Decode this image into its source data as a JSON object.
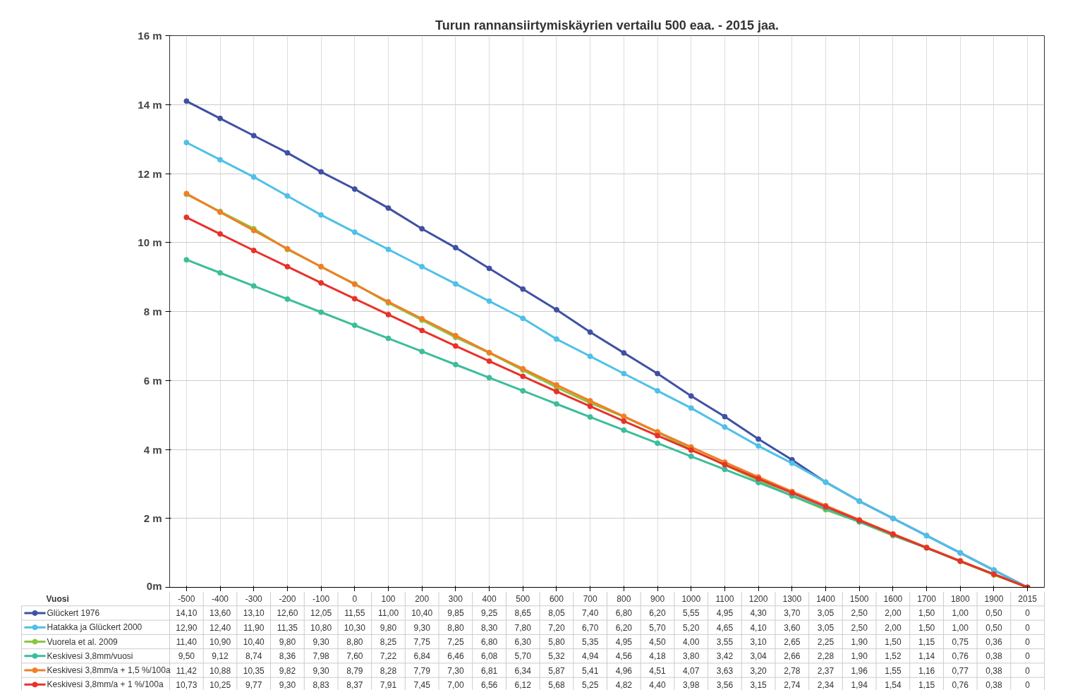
{
  "chart_data": {
    "type": "line",
    "title": "Turun rannansiirtymiskäyrien vertailu 500 eaa. - 2015 jaa.",
    "annotations": [
      "Vuosi"
    ],
    "categories": [
      "-500",
      "-400",
      "-300",
      "-200",
      "-100",
      "0",
      "100",
      "200",
      "300",
      "400",
      "500",
      "600",
      "700",
      "800",
      "900",
      "1000",
      "1100",
      "1200",
      "1300",
      "1400",
      "1500",
      "1600",
      "1700",
      "1800",
      "1900",
      "2015"
    ],
    "ylim": [
      0,
      16
    ],
    "yticks": [
      {
        "value": 0,
        "label": "0m"
      },
      {
        "value": 2,
        "label": "2 m"
      },
      {
        "value": 4,
        "label": "4 m"
      },
      {
        "value": 6,
        "label": "6 m"
      },
      {
        "value": 8,
        "label": "8 m"
      },
      {
        "value": 10,
        "label": "10 m"
      },
      {
        "value": 12,
        "label": "12 m"
      },
      {
        "value": 14,
        "label": "14 m"
      },
      {
        "value": 16,
        "label": "16 m"
      }
    ],
    "grid": true,
    "legend": "bottom",
    "marker": "circle",
    "line_style": "solid",
    "series": [
      {
        "name": "Glückert 1976",
        "color": "#3f51a3",
        "values": [
          14.1,
          13.6,
          13.1,
          12.6,
          12.05,
          11.55,
          11.0,
          10.4,
          9.85,
          9.25,
          8.65,
          8.05,
          7.4,
          6.8,
          6.2,
          5.55,
          4.95,
          4.3,
          3.7,
          3.05,
          2.5,
          2.0,
          1.5,
          1.0,
          0.5,
          0
        ],
        "value_labels": [
          "14,10",
          "13,60",
          "13,10",
          "12,60",
          "12,05",
          "11,55",
          "11,00",
          "10,40",
          "9,85",
          "9,25",
          "8,65",
          "8,05",
          "7,40",
          "6,80",
          "6,20",
          "5,55",
          "4,95",
          "4,30",
          "3,70",
          "3,05",
          "2,50",
          "2,00",
          "1,50",
          "1,00",
          "0,50",
          "0"
        ]
      },
      {
        "name": "Hatakka ja Glückert 2000",
        "color": "#4fc0e8",
        "values": [
          12.9,
          12.4,
          11.9,
          11.35,
          10.8,
          10.3,
          9.8,
          9.3,
          8.8,
          8.3,
          7.8,
          7.2,
          6.7,
          6.2,
          5.7,
          5.2,
          4.65,
          4.1,
          3.6,
          3.05,
          2.5,
          2.0,
          1.5,
          1.0,
          0.5,
          0
        ],
        "value_labels": [
          "12,90",
          "12,40",
          "11,90",
          "11,35",
          "10,80",
          "10,30",
          "9,80",
          "9,30",
          "8,80",
          "8,30",
          "7,80",
          "7,20",
          "6,70",
          "6,20",
          "5,70",
          "5,20",
          "4,65",
          "4,10",
          "3,60",
          "3,05",
          "2,50",
          "2,00",
          "1,50",
          "1,00",
          "0,50",
          "0"
        ]
      },
      {
        "name": "Vuorela et al. 2009",
        "color": "#8cc63f",
        "values": [
          11.4,
          10.9,
          10.4,
          9.8,
          9.3,
          8.8,
          8.25,
          7.75,
          7.25,
          6.8,
          6.3,
          5.8,
          5.35,
          4.95,
          4.5,
          4.0,
          3.55,
          3.1,
          2.65,
          2.25,
          1.9,
          1.5,
          1.15,
          0.75,
          0.36,
          0
        ],
        "value_labels": [
          "11,40",
          "10,90",
          "10,40",
          "9,80",
          "9,30",
          "8,80",
          "8,25",
          "7,75",
          "7,25",
          "6,80",
          "6,30",
          "5,80",
          "5,35",
          "4,95",
          "4,50",
          "4,00",
          "3,55",
          "3,10",
          "2,65",
          "2,25",
          "1,90",
          "1,50",
          "1,15",
          "0,75",
          "0,36",
          "0"
        ]
      },
      {
        "name": "Keskivesi 3,8mm/vuosi",
        "color": "#3dbd9a",
        "values": [
          9.5,
          9.12,
          8.74,
          8.36,
          7.98,
          7.6,
          7.22,
          6.84,
          6.46,
          6.08,
          5.7,
          5.32,
          4.94,
          4.56,
          4.18,
          3.8,
          3.42,
          3.04,
          2.66,
          2.28,
          1.9,
          1.52,
          1.14,
          0.76,
          0.38,
          0
        ],
        "value_labels": [
          "9,50",
          "9,12",
          "8,74",
          "8,36",
          "7,98",
          "7,60",
          "7,22",
          "6,84",
          "6,46",
          "6,08",
          "5,70",
          "5,32",
          "4,94",
          "4,56",
          "4,18",
          "3,80",
          "3,42",
          "3,04",
          "2,66",
          "2,28",
          "1,90",
          "1,52",
          "1,14",
          "0,76",
          "0,38",
          "0"
        ]
      },
      {
        "name": "Keskivesi 3,8mm/a + 1,5 %/100a",
        "color": "#f07f25",
        "values": [
          11.42,
          10.88,
          10.35,
          9.82,
          9.3,
          8.79,
          8.28,
          7.79,
          7.3,
          6.81,
          6.34,
          5.87,
          5.41,
          4.96,
          4.51,
          4.07,
          3.63,
          3.2,
          2.78,
          2.37,
          1.96,
          1.55,
          1.16,
          0.77,
          0.38,
          0
        ],
        "value_labels": [
          "11,42",
          "10,88",
          "10,35",
          "9,82",
          "9,30",
          "8,79",
          "8,28",
          "7,79",
          "7,30",
          "6,81",
          "6,34",
          "5,87",
          "5,41",
          "4,96",
          "4,51",
          "4,07",
          "3,63",
          "3,20",
          "2,78",
          "2,37",
          "1,96",
          "1,55",
          "1,16",
          "0,77",
          "0,38",
          "0"
        ]
      },
      {
        "name": "Keskivesi 3,8mm/a + 1 %/100a",
        "color": "#e8322a",
        "values": [
          10.73,
          10.25,
          9.77,
          9.3,
          8.83,
          8.37,
          7.91,
          7.45,
          7.0,
          6.56,
          6.12,
          5.68,
          5.25,
          4.82,
          4.4,
          3.98,
          3.56,
          3.15,
          2.74,
          2.34,
          1.94,
          1.54,
          1.15,
          0.76,
          0.38,
          0
        ],
        "value_labels": [
          "10,73",
          "10,25",
          "9,77",
          "9,30",
          "8,83",
          "8,37",
          "7,91",
          "7,45",
          "7,00",
          "6,56",
          "6,12",
          "5,68",
          "5,25",
          "4,82",
          "4,40",
          "3,98",
          "3,56",
          "3,15",
          "2,74",
          "2,34",
          "1,94",
          "1,54",
          "1,15",
          "0,76",
          "0,38",
          "0"
        ]
      }
    ]
  }
}
